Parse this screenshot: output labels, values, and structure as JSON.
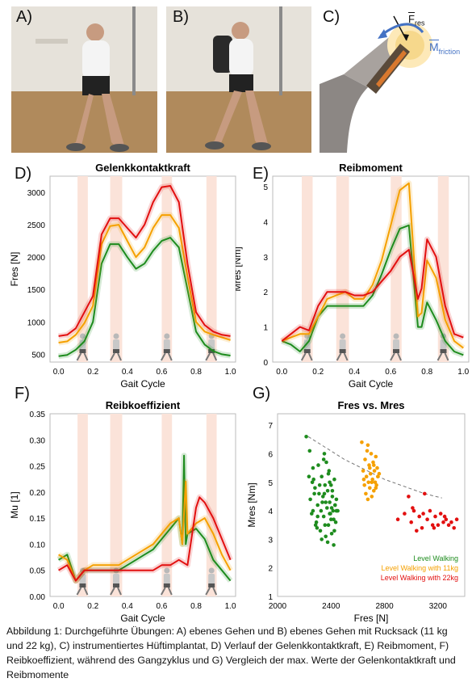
{
  "panels": {
    "A": "A)",
    "B": "B)",
    "C": "C)",
    "D": "D)",
    "E": "E)",
    "F": "F)",
    "G": "G)"
  },
  "implant": {
    "force_label": "F",
    "force_sub": "res",
    "moment_label": "M",
    "moment_sub": "friction",
    "moment_color": "#4472c4"
  },
  "colors": {
    "level": "#1e8c1e",
    "kg11": "#f5a000",
    "kg22": "#e21010",
    "phase_band": "#fbe3d9"
  },
  "chart_data": [
    {
      "type": "line",
      "id": "D",
      "title": "Gelenkkontaktkraft",
      "xlabel": "Gait Cycle",
      "ylabel": "Fres [N]",
      "xlim": [
        -0.05,
        1.03
      ],
      "ylim": [
        380,
        3250
      ],
      "xticks": [
        0.0,
        0.2,
        0.4,
        0.6,
        0.8,
        1.0
      ],
      "xtick_labels": [
        "0.0",
        "0.2",
        "0.4",
        "0.6",
        "0.8",
        "1.0"
      ],
      "yticks": [
        500,
        1000,
        1500,
        2000,
        2500,
        3000
      ],
      "ytick_labels": [
        "500",
        "1000",
        "1500",
        "2000",
        "2500",
        "3000"
      ],
      "bands": [
        [
          0.11,
          0.17
        ],
        [
          0.3,
          0.37
        ],
        [
          0.6,
          0.66
        ],
        [
          0.86,
          0.92
        ]
      ],
      "series": [
        {
          "color_key": "level",
          "x": [
            0,
            0.05,
            0.1,
            0.15,
            0.2,
            0.25,
            0.3,
            0.35,
            0.4,
            0.45,
            0.5,
            0.55,
            0.6,
            0.65,
            0.7,
            0.75,
            0.8,
            0.85,
            0.9,
            0.95,
            1.0
          ],
          "y": [
            470,
            490,
            570,
            700,
            1000,
            1900,
            2200,
            2200,
            2000,
            1820,
            1900,
            2100,
            2250,
            2300,
            2150,
            1500,
            850,
            650,
            550,
            500,
            480
          ]
        },
        {
          "color_key": "kg11",
          "x": [
            0,
            0.05,
            0.1,
            0.15,
            0.2,
            0.25,
            0.3,
            0.35,
            0.4,
            0.45,
            0.5,
            0.55,
            0.6,
            0.65,
            0.7,
            0.75,
            0.8,
            0.85,
            0.9,
            0.95,
            1.0
          ],
          "y": [
            680,
            700,
            800,
            980,
            1250,
            2200,
            2480,
            2500,
            2250,
            2000,
            2150,
            2450,
            2650,
            2650,
            2450,
            1700,
            1000,
            850,
            800,
            760,
            720
          ]
        },
        {
          "color_key": "kg22",
          "x": [
            0,
            0.05,
            0.1,
            0.15,
            0.2,
            0.25,
            0.3,
            0.35,
            0.4,
            0.45,
            0.5,
            0.55,
            0.6,
            0.65,
            0.7,
            0.75,
            0.8,
            0.85,
            0.9,
            0.95,
            1.0
          ],
          "y": [
            780,
            800,
            900,
            1150,
            1400,
            2350,
            2600,
            2600,
            2450,
            2300,
            2500,
            2850,
            3080,
            3100,
            2850,
            1900,
            1150,
            950,
            850,
            800,
            780
          ]
        }
      ]
    },
    {
      "type": "line",
      "id": "E",
      "title": "Reibmoment",
      "xlabel": "Gait Cycle",
      "ylabel": "Mres [Nm]",
      "xlim": [
        -0.05,
        1.03
      ],
      "ylim": [
        0,
        5.3
      ],
      "xticks": [
        0.0,
        0.2,
        0.4,
        0.6,
        0.8,
        1.0
      ],
      "xtick_labels": [
        "0.0",
        "0.2",
        "0.4",
        "0.6",
        "0.8",
        "1.0"
      ],
      "yticks": [
        0,
        1,
        2,
        3,
        4,
        5
      ],
      "ytick_labels": [
        "0",
        "1",
        "2",
        "3",
        "4",
        "5"
      ],
      "bands": [
        [
          0.11,
          0.17
        ],
        [
          0.3,
          0.37
        ],
        [
          0.6,
          0.66
        ],
        [
          0.86,
          0.92
        ]
      ],
      "series": [
        {
          "color_key": "level",
          "x": [
            0,
            0.05,
            0.1,
            0.15,
            0.2,
            0.25,
            0.3,
            0.35,
            0.4,
            0.45,
            0.5,
            0.55,
            0.6,
            0.65,
            0.7,
            0.75,
            0.77,
            0.8,
            0.85,
            0.9,
            0.95,
            1.0
          ],
          "y": [
            0.6,
            0.5,
            0.3,
            0.6,
            1.3,
            1.6,
            1.6,
            1.6,
            1.6,
            1.6,
            1.9,
            2.5,
            3.2,
            3.8,
            3.9,
            1.0,
            1.0,
            1.7,
            1.2,
            0.6,
            0.3,
            0.2
          ]
        },
        {
          "color_key": "kg11",
          "x": [
            0,
            0.05,
            0.1,
            0.15,
            0.2,
            0.25,
            0.3,
            0.35,
            0.4,
            0.45,
            0.5,
            0.55,
            0.6,
            0.65,
            0.7,
            0.75,
            0.77,
            0.8,
            0.85,
            0.9,
            0.95,
            1.0
          ],
          "y": [
            0.6,
            0.7,
            0.8,
            0.8,
            1.3,
            1.8,
            1.9,
            2.0,
            1.8,
            1.8,
            2.2,
            2.9,
            3.9,
            4.9,
            5.1,
            1.3,
            1.4,
            2.9,
            2.4,
            1.2,
            0.6,
            0.4
          ]
        },
        {
          "color_key": "kg22",
          "x": [
            0,
            0.05,
            0.1,
            0.15,
            0.2,
            0.25,
            0.3,
            0.35,
            0.4,
            0.45,
            0.5,
            0.55,
            0.6,
            0.65,
            0.7,
            0.75,
            0.77,
            0.8,
            0.85,
            0.9,
            0.95,
            1.0
          ],
          "y": [
            0.6,
            0.8,
            1.0,
            0.9,
            1.6,
            2.0,
            2.0,
            2.0,
            1.9,
            1.9,
            2.0,
            2.3,
            2.6,
            3.0,
            3.2,
            1.8,
            2.1,
            3.5,
            3.0,
            1.6,
            0.8,
            0.7
          ]
        }
      ]
    },
    {
      "type": "line",
      "id": "F",
      "title": "Reibkoeffizient",
      "xlabel": "Gait Cycle",
      "ylabel": "Mu [1]",
      "xlim": [
        -0.05,
        1.03
      ],
      "ylim": [
        0,
        0.35
      ],
      "xticks": [
        0.0,
        0.2,
        0.4,
        0.6,
        0.8,
        1.0
      ],
      "xtick_labels": [
        "0.0",
        "0.2",
        "0.4",
        "0.6",
        "0.8",
        "1.0"
      ],
      "yticks": [
        0,
        0.05,
        0.1,
        0.15,
        0.2,
        0.25,
        0.3,
        0.35
      ],
      "ytick_labels": [
        "0.00",
        "0.05",
        "0.10",
        "0.15",
        "0.20",
        "0.25",
        "0.30",
        "0.35"
      ],
      "bands": [
        [
          0.11,
          0.17
        ],
        [
          0.3,
          0.37
        ],
        [
          0.6,
          0.66
        ],
        [
          0.86,
          0.92
        ]
      ],
      "series": [
        {
          "color_key": "level",
          "x": [
            0,
            0.05,
            0.1,
            0.15,
            0.2,
            0.25,
            0.3,
            0.35,
            0.4,
            0.45,
            0.5,
            0.55,
            0.6,
            0.65,
            0.7,
            0.72,
            0.73,
            0.74,
            0.75,
            0.8,
            0.85,
            0.9,
            0.95,
            1.0
          ],
          "y": [
            0.07,
            0.08,
            0.03,
            0.05,
            0.05,
            0.05,
            0.05,
            0.05,
            0.06,
            0.07,
            0.08,
            0.09,
            0.11,
            0.13,
            0.15,
            0.1,
            0.27,
            0.1,
            0.12,
            0.13,
            0.11,
            0.07,
            0.05,
            0.03
          ]
        },
        {
          "color_key": "kg11",
          "x": [
            0,
            0.05,
            0.1,
            0.15,
            0.2,
            0.25,
            0.3,
            0.35,
            0.4,
            0.45,
            0.5,
            0.55,
            0.6,
            0.65,
            0.7,
            0.72,
            0.74,
            0.75,
            0.8,
            0.85,
            0.9,
            0.95,
            1.0
          ],
          "y": [
            0.08,
            0.07,
            0.03,
            0.05,
            0.06,
            0.06,
            0.06,
            0.06,
            0.07,
            0.08,
            0.09,
            0.1,
            0.12,
            0.14,
            0.15,
            0.1,
            0.22,
            0.12,
            0.14,
            0.15,
            0.12,
            0.08,
            0.05
          ]
        },
        {
          "color_key": "kg22",
          "x": [
            0,
            0.05,
            0.1,
            0.15,
            0.2,
            0.25,
            0.3,
            0.35,
            0.4,
            0.45,
            0.5,
            0.55,
            0.6,
            0.65,
            0.7,
            0.75,
            0.8,
            0.82,
            0.85,
            0.9,
            0.95,
            1.0
          ],
          "y": [
            0.05,
            0.06,
            0.03,
            0.05,
            0.05,
            0.05,
            0.05,
            0.05,
            0.05,
            0.05,
            0.05,
            0.05,
            0.06,
            0.06,
            0.07,
            0.06,
            0.17,
            0.19,
            0.18,
            0.15,
            0.11,
            0.07
          ]
        }
      ]
    },
    {
      "type": "scatter",
      "id": "G",
      "title": "Fres vs. Mres",
      "xlabel": "Fres [N]",
      "ylabel": "Mres [Nm]",
      "xlim": [
        2000,
        3400
      ],
      "ylim": [
        1,
        7.4
      ],
      "xticks": [
        2000,
        2400,
        2800,
        3200
      ],
      "xtick_labels": [
        "2000",
        "2400",
        "2800",
        "3200"
      ],
      "yticks": [
        1,
        2,
        3,
        4,
        5,
        6,
        7
      ],
      "ytick_labels": [
        "1",
        "2",
        "3",
        "4",
        "5",
        "6",
        "7"
      ],
      "legend": [
        "Level Walking",
        "Level Walking with 11kg",
        "Level Walking with 22kg"
      ],
      "trend": {
        "x": [
          2230,
          2500,
          2800,
          3100,
          3230
        ],
        "y": [
          6.6,
          5.8,
          5.1,
          4.6,
          4.45
        ]
      },
      "series": [
        {
          "color_key": "level",
          "x": [
            2215,
            2240,
            2260,
            2275,
            2290,
            2300,
            2305,
            2320,
            2325,
            2330,
            2340,
            2345,
            2350,
            2355,
            2360,
            2365,
            2370,
            2375,
            2380,
            2385,
            2390,
            2395,
            2400,
            2405,
            2410,
            2415,
            2420,
            2425,
            2430,
            2435,
            2440,
            2245,
            2255,
            2265,
            2280,
            2295,
            2310,
            2330,
            2345,
            2360,
            2375,
            2390,
            2410,
            2425,
            2440,
            2450,
            2270,
            2300,
            2335,
            2355,
            2380,
            2405,
            2420,
            2285,
            2315,
            2350,
            2390,
            2430,
            2235,
            2265,
            2400
          ],
          "y": [
            6.6,
            6.1,
            5.0,
            4.6,
            3.6,
            4.2,
            5.6,
            3.3,
            4.0,
            5.2,
            4.5,
            3.8,
            6.0,
            4.9,
            3.1,
            5.7,
            4.1,
            4.7,
            3.5,
            5.4,
            4.3,
            3.9,
            4.9,
            3.2,
            4.5,
            4.0,
            3.7,
            5.1,
            4.2,
            3.6,
            4.0,
            4.4,
            3.9,
            5.5,
            4.8,
            3.4,
            4.6,
            3.0,
            5.8,
            4.3,
            2.9,
            5.0,
            4.7,
            3.3,
            4.4,
            4.0,
            5.1,
            3.8,
            4.3,
            3.5,
            5.3,
            4.1,
            2.8,
            3.5,
            4.9,
            4.6,
            3.9,
            4.2,
            5.2,
            4.0,
            3.7
          ]
        },
        {
          "color_key": "kg11",
          "x": [
            2630,
            2640,
            2650,
            2655,
            2660,
            2665,
            2670,
            2675,
            2680,
            2685,
            2690,
            2695,
            2700,
            2705,
            2710,
            2715,
            2720,
            2725,
            2730,
            2735,
            2740,
            2745,
            2750,
            2760,
            2645,
            2675,
            2705,
            2735,
            2690,
            2720
          ],
          "y": [
            6.4,
            5.4,
            4.9,
            5.8,
            4.6,
            5.2,
            6.1,
            4.4,
            5.0,
            5.6,
            4.8,
            5.3,
            6.0,
            4.5,
            5.1,
            5.7,
            4.7,
            5.4,
            5.0,
            5.9,
            4.9,
            5.5,
            5.2,
            5.3,
            5.1,
            6.3,
            5.0,
            4.8,
            5.5,
            5.6
          ]
        },
        {
          "color_key": "kg22",
          "x": [
            2900,
            2950,
            2980,
            3000,
            3020,
            3040,
            3060,
            3080,
            3100,
            3120,
            3140,
            3160,
            3180,
            3200,
            3220,
            3240,
            3260,
            3280,
            3300,
            3320,
            3340,
            3010,
            3090,
            3170,
            3250
          ],
          "y": [
            3.7,
            3.9,
            4.5,
            3.6,
            4.0,
            3.3,
            3.8,
            3.4,
            4.6,
            3.7,
            4.0,
            3.5,
            3.8,
            3.5,
            3.9,
            3.6,
            3.7,
            3.5,
            3.6,
            3.4,
            3.7,
            4.1,
            3.9,
            3.4,
            3.8
          ]
        }
      ]
    }
  ],
  "caption": "Abbildung 1: Durchgeführte Übungen: A) ebenes Gehen und B) ebenes Gehen mit Rucksack (11 kg und 22 kg), C) instrumentiertes Hüftimplantat, D) Verlauf der Gelenkkontaktkraft, E) Reibmoment, F) Reibkoeffizient, während des Gangzyklus und G) Vergleich der max. Werte der Gelenkontaktkraft und Reibmomente"
}
